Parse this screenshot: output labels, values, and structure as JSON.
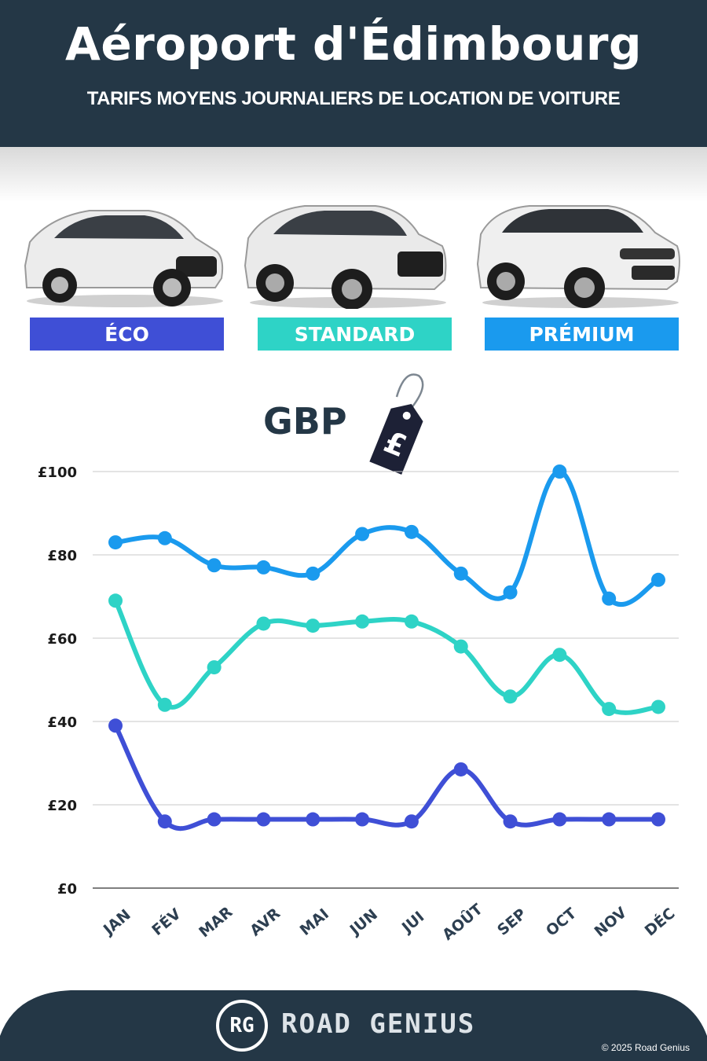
{
  "header": {
    "title": "Aéroport d'Édimbourg",
    "subtitle": "TARIFS MOYENS JOURNALIERS DE LOCATION DE VOITURE"
  },
  "categories": [
    {
      "label": "ÉCO",
      "color": "#3f4fd6"
    },
    {
      "label": "STANDARD",
      "color": "#2ed3c6"
    },
    {
      "label": "PRÉMIUM",
      "color": "#1a9aee"
    }
  ],
  "currency": {
    "label": "GBP",
    "symbol": "£"
  },
  "chart_data": {
    "type": "line",
    "categories": [
      "JAN",
      "FÉV",
      "MAR",
      "AVR",
      "MAI",
      "JUN",
      "JUI",
      "AOÛT",
      "SEP",
      "OCT",
      "NOV",
      "DÉC"
    ],
    "series": [
      {
        "name": "PRÉMIUM",
        "color": "#1a9aee",
        "values": [
          83,
          84,
          77.5,
          77,
          75.5,
          85,
          85.5,
          75.5,
          71,
          100,
          69.5,
          74
        ]
      },
      {
        "name": "STANDARD",
        "color": "#2ed3c6",
        "values": [
          69,
          44,
          53,
          63.5,
          63,
          64,
          64,
          58,
          46,
          56,
          43,
          43.5
        ]
      },
      {
        "name": "ÉCO",
        "color": "#3f4fd6",
        "values": [
          39,
          16,
          16.5,
          16.5,
          16.5,
          16.5,
          16,
          28.5,
          16,
          16.5,
          16.5,
          16.5
        ]
      }
    ],
    "yticks": [
      "£0",
      "£20",
      "£40",
      "£60",
      "£80",
      "£100"
    ],
    "ylim": [
      0,
      100
    ],
    "grid": true
  },
  "footer": {
    "logo": "RG",
    "brand": "ROAD GENIUS",
    "copyright": "© 2025 Road Genius"
  }
}
